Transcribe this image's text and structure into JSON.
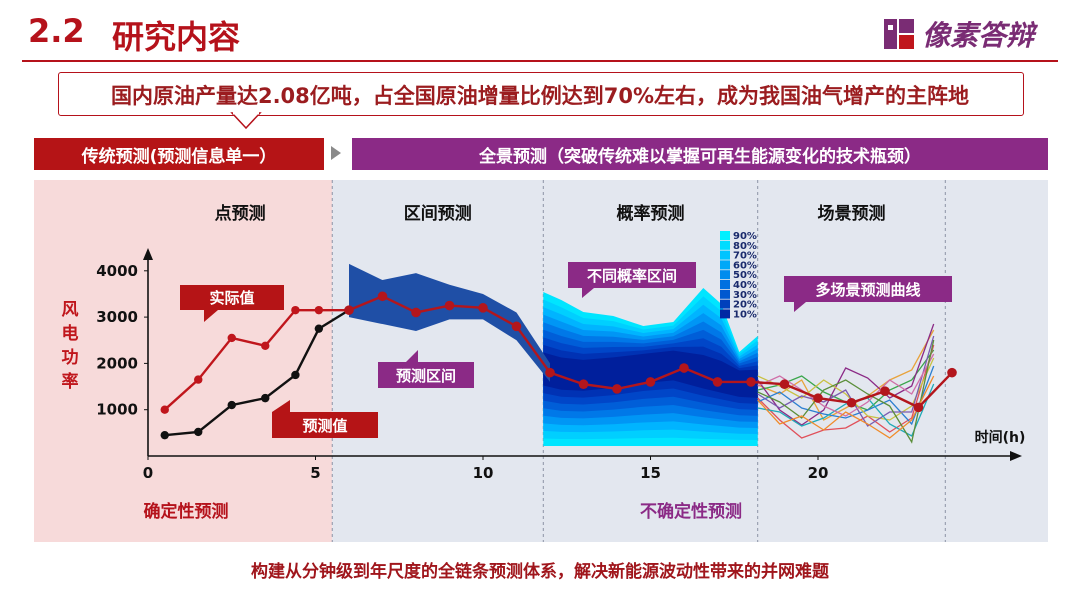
{
  "header": {
    "section_number": "2.2",
    "section_title": "研究内容",
    "logo_text": "像素答辩",
    "headline": "国内原油产量达2.08亿吨，占全国原油增量比例达到70%左右，成为我国油气增产的主阵地"
  },
  "banner": {
    "traditional": "传统预测(预测信息单一）",
    "panoramic": "全景预测（突破传统难以掌握可再生能源变化的技术瓶颈）"
  },
  "chart_data": {
    "type": "line",
    "ylabel": "风电功率",
    "xlabel": "时间(h)",
    "xlim": [
      0,
      25
    ],
    "ylim": [
      0,
      4600
    ],
    "x_ticks": [
      0,
      5,
      10,
      15,
      20
    ],
    "y_ticks": [
      1000,
      2000,
      3000,
      4000
    ],
    "regions": [
      {
        "name": "点预测",
        "x_range": [
          0,
          5.5
        ]
      },
      {
        "name": "区间预测",
        "x_range": [
          5.5,
          11.8
        ]
      },
      {
        "name": "概率预测",
        "x_range": [
          11.8,
          18.2
        ]
      },
      {
        "name": "场景预测",
        "x_range": [
          18.2,
          23.8
        ]
      }
    ],
    "bottom_labels": {
      "certain": "确定性预测",
      "uncertain": "不确定性预测"
    },
    "series": [
      {
        "name": "实际值",
        "color": "#c0161c",
        "x": [
          0.5,
          1.5,
          2.5,
          3.5,
          4.4,
          5.1,
          6.0
        ],
        "y": [
          1000,
          1650,
          2550,
          2380,
          3150,
          3150,
          3150
        ]
      },
      {
        "name": "预测值",
        "color": "#111111",
        "x": [
          0.5,
          1.5,
          2.5,
          3.5,
          4.4,
          5.1,
          6.0
        ],
        "y": [
          450,
          520,
          1100,
          1250,
          1750,
          2750,
          3150
        ]
      },
      {
        "name": "",
        "color": "#b3161c",
        "x": [
          6.0,
          7.0,
          8.0,
          9.0,
          10.0,
          11.0,
          12.0,
          13.0,
          14.0,
          15.0,
          16.0,
          17.0,
          18.0,
          19.0,
          20.0,
          21.0,
          22.0,
          23.0,
          24.0
        ],
        "y": [
          3150,
          3450,
          3100,
          3250,
          3200,
          2800,
          1800,
          1550,
          1450,
          1600,
          1900,
          1600,
          1600,
          1550,
          1250,
          1150,
          1400,
          1050,
          1800
        ]
      }
    ],
    "interval_band": {
      "x": [
        6.0,
        7.0,
        8.0,
        9.0,
        10.0,
        11.0,
        12.0
      ],
      "upper": [
        4150,
        3800,
        3950,
        3700,
        3500,
        3100,
        2000
      ],
      "lower": [
        3000,
        2850,
        2700,
        2950,
        2950,
        2500,
        1600
      ]
    },
    "probability_legend": [
      "90%",
      "80%",
      "70%",
      "60%",
      "50%",
      "40%",
      "30%",
      "20%",
      "10%"
    ],
    "annotations": {
      "actual": "实际值",
      "forecast": "预测值",
      "interval": "预测区间",
      "probability": "不同概率区间",
      "scenario": "多场景预测曲线"
    },
    "colors": {
      "accent_red": "#b5121b",
      "purple": "#8b2a86"
    }
  },
  "footer": {
    "note": "构建从分钟级到年尺度的全链条预测体系，解决新能源波动性带来的并网难题"
  }
}
